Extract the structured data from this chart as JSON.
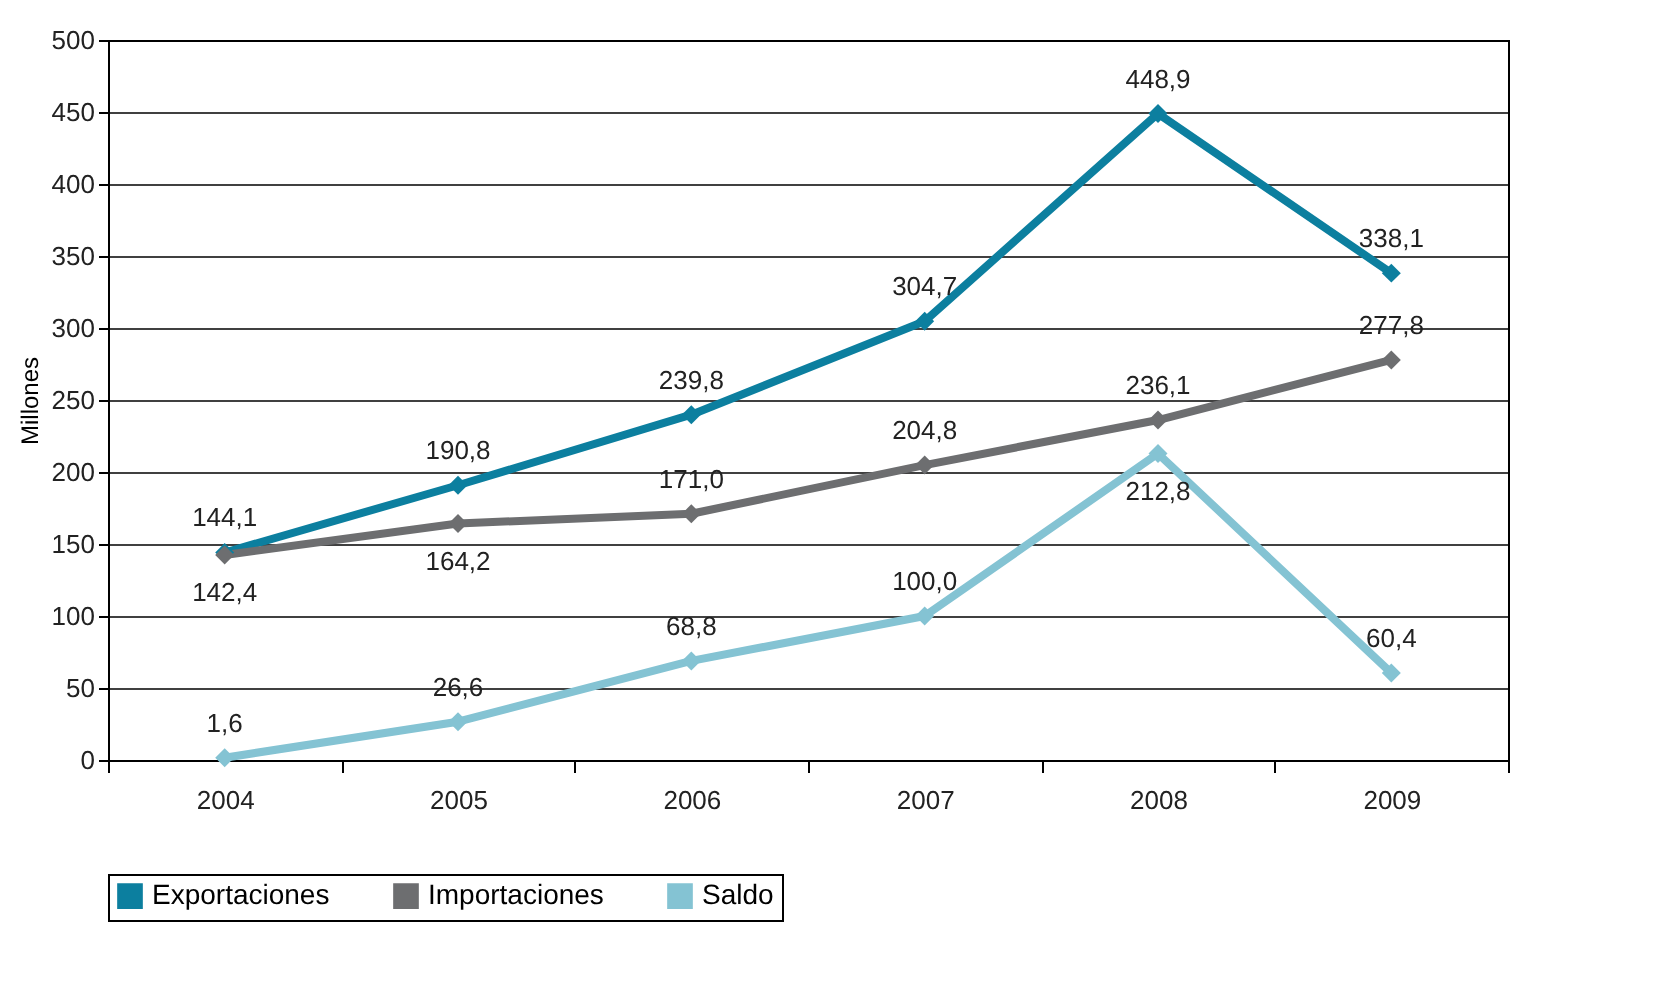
{
  "chart_data": {
    "type": "line",
    "ylabel": "Millones",
    "categories": [
      "2004",
      "2005",
      "2006",
      "2007",
      "2008",
      "2009"
    ],
    "ylim": [
      0,
      500
    ],
    "yticks": [
      0,
      50,
      100,
      150,
      200,
      250,
      300,
      350,
      400,
      450,
      500
    ],
    "grid": "y",
    "legend": "bottom",
    "marker": "diamond",
    "line_style": "solid",
    "series": [
      {
        "name": "Exportaciones",
        "color": "#0c7f9f",
        "values": [
          144.1,
          190.8,
          239.8,
          304.7,
          448.9,
          338.1
        ],
        "value_labels": [
          "144,1",
          "190,8",
          "239,8",
          "304,7",
          "448,9",
          "338,1"
        ]
      },
      {
        "name": "Importaciones",
        "color": "#6d6e70",
        "values": [
          142.4,
          164.2,
          171.0,
          204.8,
          236.1,
          277.8
        ],
        "value_labels": [
          "142,4",
          "164,2",
          "171,0",
          "204,8",
          "236,1",
          "277,8"
        ]
      },
      {
        "name": "Saldo",
        "color": "#84c3d3",
        "values": [
          1.6,
          26.6,
          68.8,
          100.0,
          212.8,
          60.4
        ],
        "value_labels": [
          "1,6",
          "26,6",
          "68,8",
          "100,0",
          "212,8",
          "60,4"
        ]
      }
    ]
  }
}
